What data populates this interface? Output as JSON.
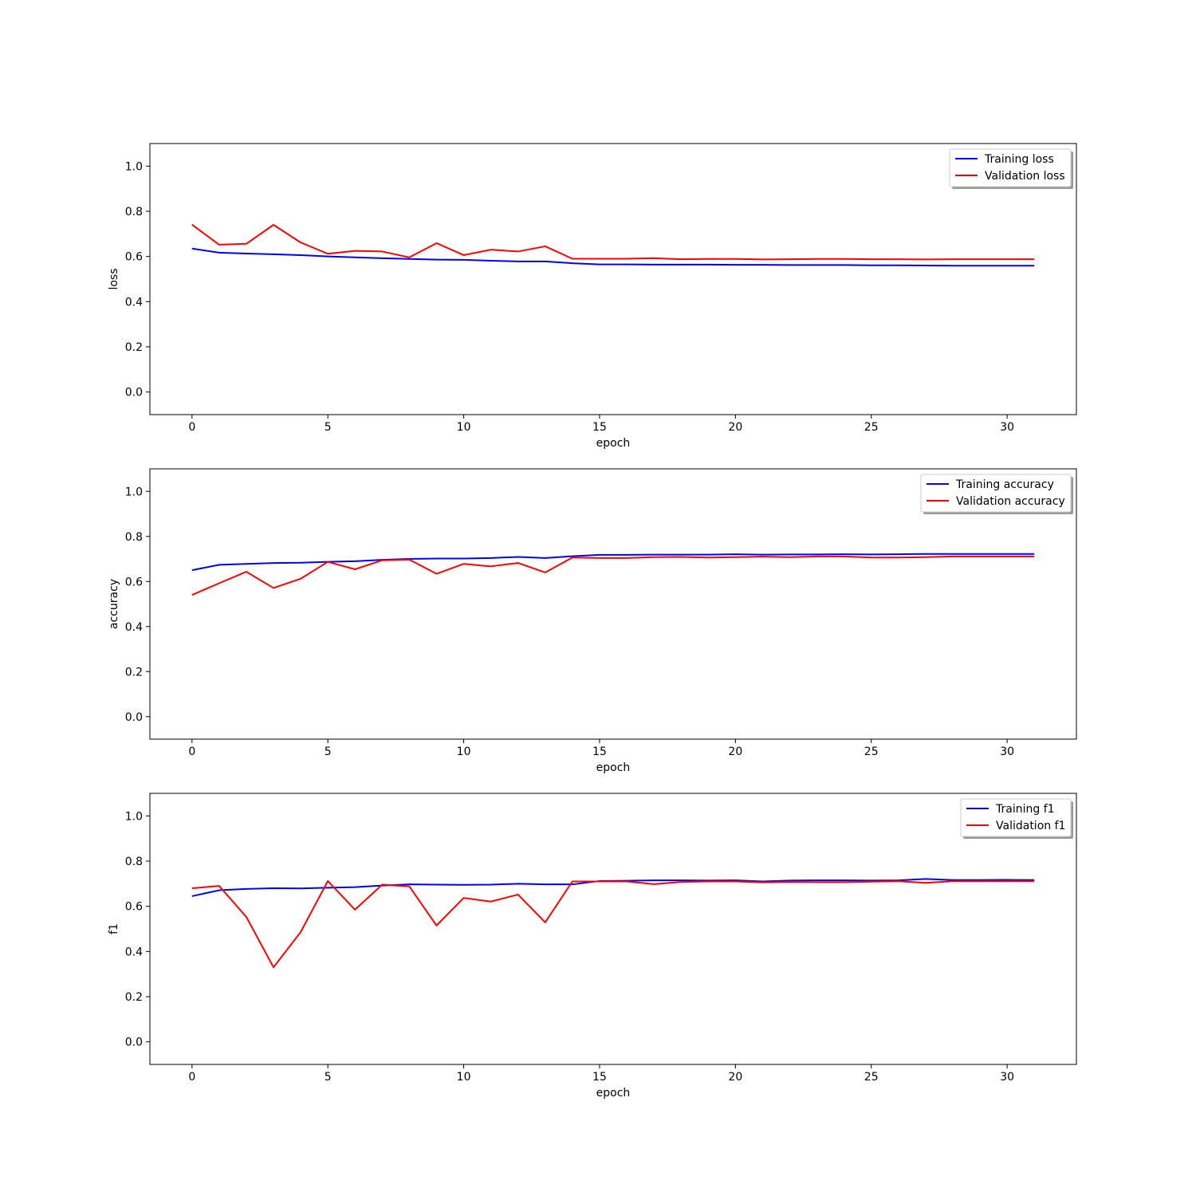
{
  "chart_data": [
    {
      "type": "line",
      "xlabel": "epoch",
      "ylabel": "loss",
      "xlim": [
        -1.55,
        32.55
      ],
      "ylim": [
        -0.1,
        1.1
      ],
      "xticks": [
        0,
        5,
        10,
        15,
        20,
        25,
        30
      ],
      "yticks": [
        0.0,
        0.2,
        0.4,
        0.6,
        0.8,
        1.0
      ],
      "grid": false,
      "legend_position": "top-right",
      "x": [
        0,
        1,
        2,
        3,
        4,
        5,
        6,
        7,
        8,
        9,
        10,
        11,
        12,
        13,
        14,
        15,
        16,
        17,
        18,
        19,
        20,
        21,
        22,
        23,
        24,
        25,
        26,
        27,
        28,
        29,
        30,
        31
      ],
      "series": [
        {
          "name": "Training loss",
          "color": "#0000ff",
          "values": [
            0.635,
            0.617,
            0.613,
            0.61,
            0.606,
            0.6,
            0.596,
            0.592,
            0.589,
            0.586,
            0.585,
            0.581,
            0.578,
            0.578,
            0.57,
            0.565,
            0.565,
            0.564,
            0.564,
            0.564,
            0.563,
            0.563,
            0.562,
            0.562,
            0.562,
            0.561,
            0.561,
            0.56,
            0.559,
            0.559,
            0.559,
            0.559
          ]
        },
        {
          "name": "Validation loss",
          "color": "#ff0000",
          "values": [
            0.741,
            0.652,
            0.656,
            0.74,
            0.662,
            0.612,
            0.625,
            0.622,
            0.596,
            0.659,
            0.606,
            0.63,
            0.622,
            0.645,
            0.59,
            0.59,
            0.59,
            0.592,
            0.588,
            0.589,
            0.589,
            0.587,
            0.588,
            0.589,
            0.589,
            0.588,
            0.588,
            0.587,
            0.588,
            0.588,
            0.588,
            0.588
          ]
        }
      ]
    },
    {
      "type": "line",
      "xlabel": "epoch",
      "ylabel": "accuracy",
      "xlim": [
        -1.55,
        32.55
      ],
      "ylim": [
        -0.1,
        1.1
      ],
      "xticks": [
        0,
        5,
        10,
        15,
        20,
        25,
        30
      ],
      "yticks": [
        0.0,
        0.2,
        0.4,
        0.6,
        0.8,
        1.0
      ],
      "grid": false,
      "legend_position": "top-right",
      "x": [
        0,
        1,
        2,
        3,
        4,
        5,
        6,
        7,
        8,
        9,
        10,
        11,
        12,
        13,
        14,
        15,
        16,
        17,
        18,
        19,
        20,
        21,
        22,
        23,
        24,
        25,
        26,
        27,
        28,
        29,
        30,
        31
      ],
      "series": [
        {
          "name": "Training accuracy",
          "color": "#0000ff",
          "values": [
            0.65,
            0.674,
            0.678,
            0.682,
            0.683,
            0.687,
            0.69,
            0.696,
            0.7,
            0.702,
            0.702,
            0.704,
            0.709,
            0.704,
            0.712,
            0.718,
            0.718,
            0.719,
            0.719,
            0.719,
            0.721,
            0.719,
            0.72,
            0.72,
            0.721,
            0.72,
            0.721,
            0.722,
            0.722,
            0.722,
            0.722,
            0.722
          ]
        },
        {
          "name": "Validation accuracy",
          "color": "#ff0000",
          "values": [
            0.54,
            0.592,
            0.643,
            0.571,
            0.612,
            0.687,
            0.654,
            0.694,
            0.697,
            0.634,
            0.678,
            0.667,
            0.682,
            0.64,
            0.706,
            0.704,
            0.704,
            0.708,
            0.709,
            0.706,
            0.708,
            0.71,
            0.708,
            0.711,
            0.711,
            0.706,
            0.706,
            0.708,
            0.711,
            0.711,
            0.711,
            0.711
          ]
        }
      ]
    },
    {
      "type": "line",
      "xlabel": "epoch",
      "ylabel": "f1",
      "xlim": [
        -1.55,
        32.55
      ],
      "ylim": [
        -0.1,
        1.1
      ],
      "xticks": [
        0,
        5,
        10,
        15,
        20,
        25,
        30
      ],
      "yticks": [
        0.0,
        0.2,
        0.4,
        0.6,
        0.8,
        1.0
      ],
      "grid": false,
      "legend_position": "top-right",
      "x": [
        0,
        1,
        2,
        3,
        4,
        5,
        6,
        7,
        8,
        9,
        10,
        11,
        12,
        13,
        14,
        15,
        16,
        17,
        18,
        19,
        20,
        21,
        22,
        23,
        24,
        25,
        26,
        27,
        28,
        29,
        30,
        31
      ],
      "series": [
        {
          "name": "Training f1",
          "color": "#0000ff",
          "values": [
            0.645,
            0.671,
            0.677,
            0.68,
            0.679,
            0.682,
            0.685,
            0.692,
            0.697,
            0.696,
            0.695,
            0.696,
            0.7,
            0.697,
            0.697,
            0.712,
            0.713,
            0.715,
            0.715,
            0.714,
            0.715,
            0.71,
            0.714,
            0.715,
            0.715,
            0.714,
            0.715,
            0.721,
            0.716,
            0.716,
            0.717,
            0.716
          ]
        },
        {
          "name": "Validation f1",
          "color": "#ff0000",
          "values": [
            0.68,
            0.69,
            0.553,
            0.33,
            0.486,
            0.712,
            0.585,
            0.696,
            0.688,
            0.515,
            0.637,
            0.621,
            0.652,
            0.529,
            0.71,
            0.71,
            0.71,
            0.698,
            0.708,
            0.71,
            0.71,
            0.706,
            0.708,
            0.707,
            0.707,
            0.709,
            0.711,
            0.704,
            0.711,
            0.711,
            0.711,
            0.711
          ]
        }
      ]
    }
  ]
}
